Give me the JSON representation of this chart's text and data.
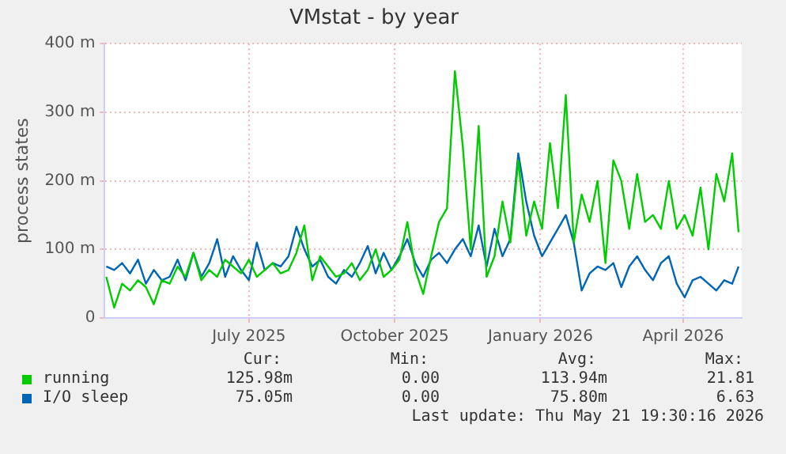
{
  "chart_data": {
    "type": "line",
    "title": "VMstat - by year",
    "ylabel": "process states",
    "x": [
      "2025-04-17",
      "2025-04-22",
      "2025-04-27",
      "2025-05-02",
      "2025-05-07",
      "2025-05-12",
      "2025-05-17",
      "2025-05-22",
      "2025-05-27",
      "2025-06-01",
      "2025-06-06",
      "2025-06-11",
      "2025-06-16",
      "2025-06-21",
      "2025-06-26",
      "2025-07-01",
      "2025-07-06",
      "2025-07-11",
      "2025-07-16",
      "2025-07-21",
      "2025-07-26",
      "2025-07-31",
      "2025-08-05",
      "2025-08-10",
      "2025-08-15",
      "2025-08-20",
      "2025-08-25",
      "2025-08-30",
      "2025-09-04",
      "2025-09-09",
      "2025-09-14",
      "2025-09-19",
      "2025-09-24",
      "2025-09-29",
      "2025-10-04",
      "2025-10-09",
      "2025-10-14",
      "2025-10-19",
      "2025-10-24",
      "2025-10-29",
      "2025-11-03",
      "2025-11-08",
      "2025-11-13",
      "2025-11-18",
      "2025-11-23",
      "2025-11-28",
      "2025-12-03",
      "2025-12-08",
      "2025-12-13",
      "2025-12-18",
      "2025-12-23",
      "2025-12-28",
      "2026-01-02",
      "2026-01-07",
      "2026-01-12",
      "2026-01-17",
      "2026-01-22",
      "2026-01-27",
      "2026-02-01",
      "2026-02-06",
      "2026-02-11",
      "2026-02-16",
      "2026-02-21",
      "2026-02-26",
      "2026-03-03",
      "2026-03-08",
      "2026-03-13",
      "2026-03-18",
      "2026-03-23",
      "2026-03-28",
      "2026-04-02",
      "2026-04-07",
      "2026-04-12",
      "2026-04-17",
      "2026-04-22",
      "2026-04-27",
      "2026-05-02",
      "2026-05-07",
      "2026-05-12",
      "2026-05-17",
      "2026-05-21"
    ],
    "series": [
      {
        "name": "running",
        "color": "#00cc00",
        "values": [
          60,
          15,
          50,
          40,
          55,
          45,
          20,
          55,
          50,
          75,
          60,
          95,
          55,
          70,
          60,
          85,
          75,
          65,
          85,
          60,
          70,
          80,
          65,
          70,
          95,
          135,
          55,
          90,
          75,
          60,
          65,
          80,
          55,
          70,
          100,
          60,
          70,
          85,
          140,
          70,
          35,
          90,
          140,
          160,
          360,
          250,
          100,
          280,
          60,
          90,
          170,
          110,
          230,
          120,
          170,
          130,
          255,
          160,
          325,
          110,
          180,
          140,
          200,
          80,
          230,
          200,
          130,
          210,
          140,
          150,
          130,
          200,
          130,
          150,
          120,
          190,
          100,
          210,
          170,
          240,
          125
        ]
      },
      {
        "name": "I/O sleep",
        "color": "#0066b3",
        "values": [
          75,
          70,
          80,
          65,
          85,
          50,
          70,
          55,
          60,
          85,
          55,
          95,
          60,
          80,
          115,
          60,
          90,
          70,
          55,
          110,
          70,
          80,
          75,
          90,
          133,
          100,
          75,
          85,
          60,
          50,
          70,
          60,
          80,
          105,
          65,
          95,
          70,
          90,
          115,
          80,
          60,
          85,
          95,
          80,
          100,
          115,
          90,
          135,
          75,
          130,
          90,
          115,
          240,
          170,
          120,
          90,
          110,
          130,
          150,
          110,
          40,
          65,
          75,
          70,
          80,
          45,
          75,
          90,
          70,
          55,
          80,
          90,
          50,
          30,
          55,
          60,
          50,
          40,
          55,
          50,
          75
        ]
      }
    ],
    "xlim": [
      "2025-04-16",
      "2026-05-23"
    ],
    "xticks": [
      {
        "value": "2025-07-16",
        "label": "July 2025"
      },
      {
        "value": "2025-10-16",
        "label": "October 2025"
      },
      {
        "value": "2026-01-16",
        "label": "January 2026"
      },
      {
        "value": "2026-04-16",
        "label": "April 2026"
      }
    ],
    "ylim": [
      0,
      400
    ],
    "yticks": [
      0,
      {
        "value": 100,
        "label": "100 m"
      },
      {
        "value": 200,
        "label": "200 m"
      },
      {
        "value": 300,
        "label": "300 m"
      },
      {
        "value": 400,
        "label": "400 m"
      }
    ],
    "grid": true,
    "legend": "bottom",
    "annotations": [
      "Cur:",
      "Min:",
      "Avg:",
      "Max:",
      "125.98m",
      "0.00",
      "113.94m",
      "21.81",
      "75.05m",
      "0.00",
      "75.80m",
      "6.63",
      "Last update: Thu May 21 19:30:16 2026"
    ]
  }
}
